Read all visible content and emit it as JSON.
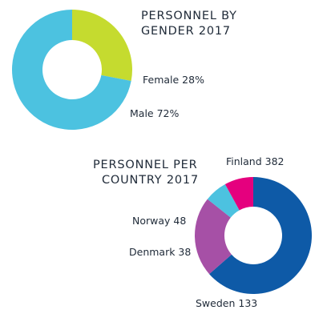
{
  "chart_data": [
    {
      "type": "pie",
      "title_lines": [
        "PERSONNEL BY",
        "GENDER 2017"
      ],
      "slices": [
        {
          "name": "Female",
          "value": 28,
          "label": "Female 28%",
          "color": "#c5db2f"
        },
        {
          "name": "Male",
          "value": 72,
          "label": "Male 72%",
          "color": "#4cc2e0"
        }
      ]
    },
    {
      "type": "pie",
      "title_lines": [
        "PERSONNEL PER",
        "COUNTRY 2017"
      ],
      "slices": [
        {
          "name": "Finland",
          "value": 382,
          "label": "Finland 382",
          "color": "#0e5aa7"
        },
        {
          "name": "Sweden",
          "value": 133,
          "label": "Sweden 133",
          "color": "#a650a6"
        },
        {
          "name": "Denmark",
          "value": 38,
          "label": "Denmark 38",
          "color": "#4cc2e0"
        },
        {
          "name": "Norway",
          "value": 48,
          "label": "Norway 48",
          "color": "#e5007e"
        }
      ]
    }
  ]
}
